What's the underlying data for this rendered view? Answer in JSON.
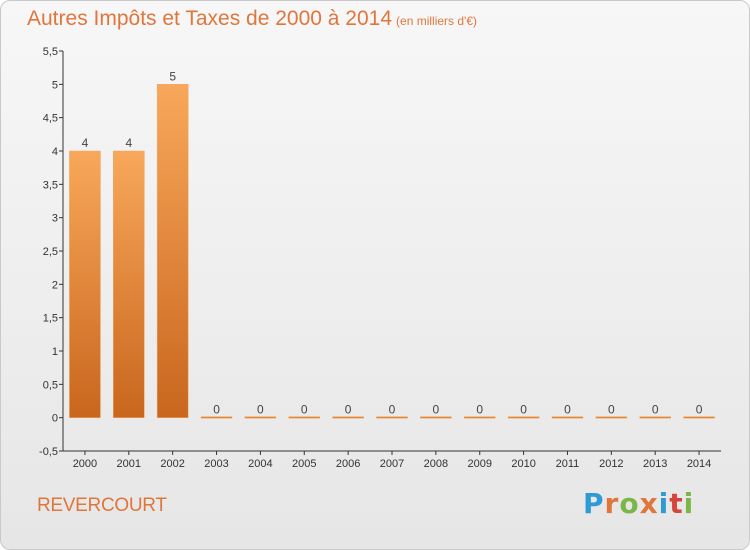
{
  "title": "Autres Impôts et Taxes de 2000 à 2014",
  "title_unit": "(en milliers d'€)",
  "place": "REVERCOURT",
  "logo": {
    "letters": [
      "P",
      "r",
      "o",
      "x",
      "i",
      "t",
      "i"
    ],
    "colors": [
      "#2e9bd6",
      "#e0763c",
      "#7ab648",
      "#e0763c",
      "#2e9bd6",
      "#d6443a",
      "#7ab648"
    ]
  },
  "colors": {
    "bar_top": "#f8a85a",
    "bar_bottom": "#c9661e",
    "accent": "#e0763c"
  },
  "chart_data": {
    "type": "bar",
    "categories": [
      "2000",
      "2001",
      "2002",
      "2003",
      "2004",
      "2005",
      "2006",
      "2007",
      "2008",
      "2009",
      "2010",
      "2011",
      "2012",
      "2013",
      "2014"
    ],
    "values": [
      4,
      4,
      5,
      0,
      0,
      0,
      0,
      0,
      0,
      0,
      0,
      0,
      0,
      0,
      0
    ],
    "value_labels": [
      "4",
      "4",
      "5",
      "0",
      "0",
      "0",
      "0",
      "0",
      "0",
      "0",
      "0",
      "0",
      "0",
      "0",
      "0"
    ],
    "ylim": [
      -0.5,
      5.5
    ],
    "yticks": [
      -0.5,
      0,
      0.5,
      1,
      1.5,
      2,
      2.5,
      3,
      3.5,
      4,
      4.5,
      5,
      5.5
    ],
    "ytick_labels": [
      "-0,5",
      "0",
      "0,5",
      "1",
      "1,5",
      "2",
      "2,5",
      "3",
      "3,5",
      "4",
      "4,5",
      "5",
      "5,5"
    ],
    "grid": false,
    "legend": "none"
  }
}
